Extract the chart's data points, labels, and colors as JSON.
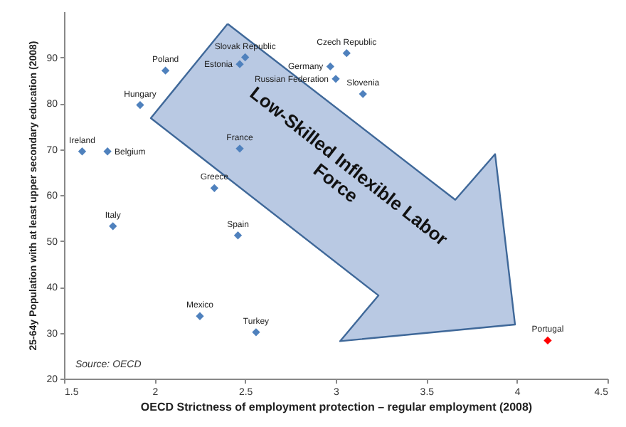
{
  "chart_data": {
    "type": "scatter",
    "xlabel": "OECD Strictness of employment protection – regular employment (2008)",
    "ylabel": "25-64y Population with at least upper secondary education (2008)",
    "series": [
      {
        "name": "Ireland",
        "color": "#4f81bd",
        "x": [
          1.6
        ],
        "values": [
          69.5
        ]
      },
      {
        "name": "Belgium",
        "color": "#4f81bd",
        "x": [
          1.74
        ],
        "values": [
          69.5
        ]
      },
      {
        "name": "Hungary",
        "color": "#4f81bd",
        "x": [
          1.92
        ],
        "values": [
          79.6
        ]
      },
      {
        "name": "Poland",
        "color": "#4f81bd",
        "x": [
          2.06
        ],
        "values": [
          87.1
        ]
      },
      {
        "name": "Estonia",
        "color": "#4f81bd",
        "x": [
          2.47
        ],
        "values": [
          88.5
        ]
      },
      {
        "name": "Slovak Republic",
        "color": "#4f81bd",
        "x": [
          2.5
        ],
        "values": [
          90
        ]
      },
      {
        "name": "Czech Republic",
        "color": "#4f81bd",
        "x": [
          3.06
        ],
        "values": [
          90.9
        ]
      },
      {
        "name": "Germany",
        "color": "#4f81bd",
        "x": [
          2.97
        ],
        "values": [
          88
        ]
      },
      {
        "name": "Russian Federation",
        "color": "#4f81bd",
        "x": [
          3.0
        ],
        "values": [
          85.3
        ]
      },
      {
        "name": "Slovenia",
        "color": "#4f81bd",
        "x": [
          3.15
        ],
        "values": [
          82
        ]
      },
      {
        "name": "France",
        "color": "#4f81bd",
        "x": [
          2.47
        ],
        "values": [
          70.1
        ]
      },
      {
        "name": "Greece",
        "color": "#4f81bd",
        "x": [
          2.33
        ],
        "values": [
          61.5
        ]
      },
      {
        "name": "Italy",
        "color": "#4f81bd",
        "x": [
          1.77
        ],
        "values": [
          53.2
        ]
      },
      {
        "name": "Spain",
        "color": "#4f81bd",
        "x": [
          2.46
        ],
        "values": [
          51.2
        ]
      },
      {
        "name": "Mexico",
        "color": "#4f81bd",
        "x": [
          2.25
        ],
        "values": [
          33.6
        ]
      },
      {
        "name": "Turkey",
        "color": "#4f81bd",
        "x": [
          2.56
        ],
        "values": [
          30.1
        ]
      },
      {
        "name": "Portugal",
        "color": "#ff0000",
        "x": [
          4.17
        ],
        "values": [
          28.3
        ]
      }
    ],
    "xlim": [
      1.5,
      4.5
    ],
    "xticks": [
      1.5,
      2,
      2.5,
      3,
      3.5,
      4,
      4.5
    ],
    "ylim": [
      20,
      100
    ],
    "yticks": [
      20,
      30,
      40,
      50,
      60,
      70,
      80,
      90
    ],
    "marker": "diamond",
    "grid": false,
    "annotations": [
      "Low-Skilled Inflexible Labor\nForce",
      "Source: OECD"
    ]
  }
}
